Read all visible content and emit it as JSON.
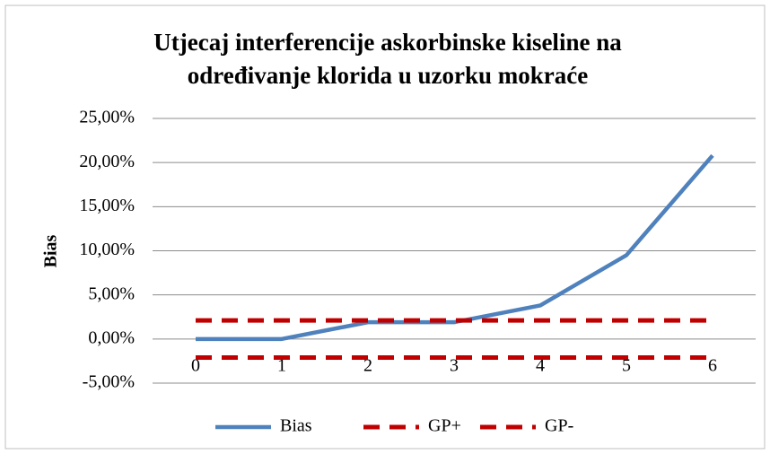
{
  "chart_data": {
    "type": "line",
    "title": [
      "Utjecaj interferencije askorbinske kiseline na",
      "određivanje klorida u uzorku mokraće"
    ],
    "y_label": "Bias",
    "categories": [
      "0",
      "1",
      "2",
      "3",
      "4",
      "5",
      "6"
    ],
    "series": [
      {
        "name": "Bias",
        "color": "#4f81bd",
        "dash": false,
        "values": [
          0,
          0,
          1.9,
          1.9,
          3.8,
          9.5,
          20.8
        ]
      },
      {
        "name": "GP+",
        "color": "#c00000",
        "dash": true,
        "values": [
          2.1,
          2.1,
          2.1,
          2.1,
          2.1,
          2.1,
          2.1
        ]
      },
      {
        "name": "GP-",
        "color": "#c00000",
        "dash": true,
        "values": [
          -2.1,
          -2.1,
          -2.1,
          -2.1,
          -2.1,
          -2.1,
          -2.1
        ]
      }
    ],
    "ylim": [
      -5,
      25
    ],
    "yticks": [
      {
        "value": -5,
        "label": "-5,00%"
      },
      {
        "value": 0,
        "label": "0,00%"
      },
      {
        "value": 5,
        "label": "5,00%"
      },
      {
        "value": 10,
        "label": "10,00%"
      },
      {
        "value": 15,
        "label": "15,00%"
      },
      {
        "value": 20,
        "label": "20,00%"
      },
      {
        "value": 25,
        "label": "25,00%"
      }
    ],
    "grid": true,
    "legend": "bottom"
  }
}
